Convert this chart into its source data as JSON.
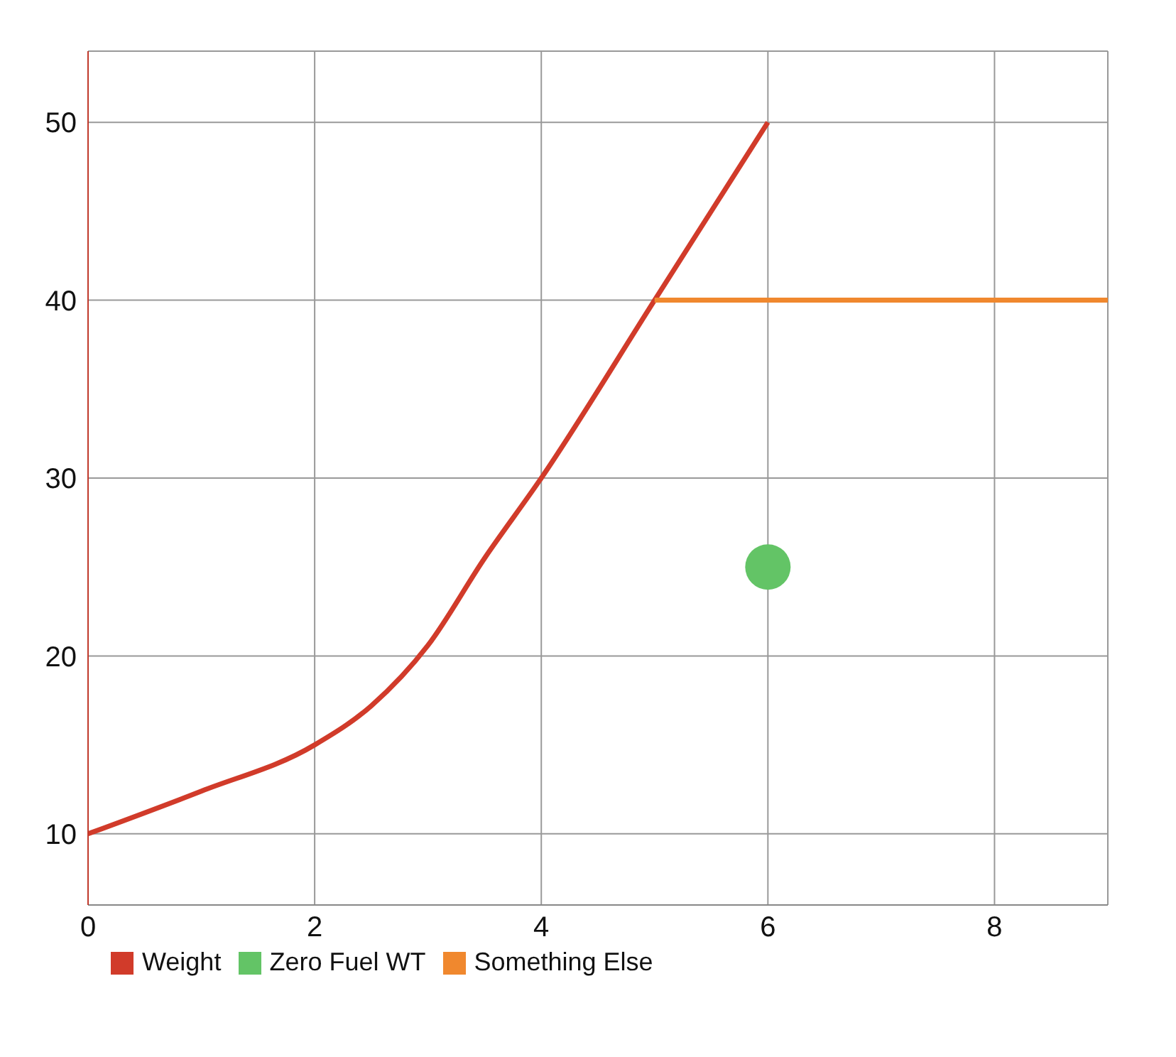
{
  "chart_data": {
    "type": "line",
    "xlim": [
      0,
      9
    ],
    "xticks": [
      0,
      2,
      4,
      6,
      8
    ],
    "ylim": [
      6,
      54
    ],
    "yticks": [
      10,
      20,
      30,
      40,
      50
    ],
    "grid": true,
    "legend": "bottom left",
    "series": [
      {
        "name": "Weight",
        "color": "#d13b2a",
        "marker": "none",
        "x": [
          0,
          1,
          2,
          2.5,
          3,
          3.5,
          4,
          5,
          6
        ],
        "values": [
          10,
          12.4,
          15,
          17.2,
          20.6,
          25.5,
          30,
          40,
          50
        ]
      },
      {
        "name": "Zero Fuel WT",
        "color": "#63c466",
        "type": "scatter",
        "marker": "circle",
        "x": [
          6
        ],
        "values": [
          25
        ]
      },
      {
        "name": "Something Else",
        "color": "#f0882e",
        "marker": "none",
        "x": [
          5,
          9
        ],
        "values": [
          40,
          40
        ]
      }
    ]
  }
}
